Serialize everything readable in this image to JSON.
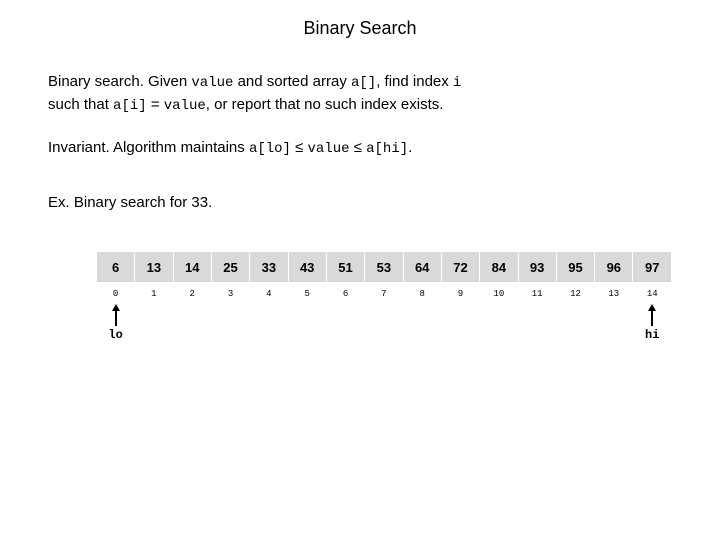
{
  "title": "Binary Search",
  "para1": {
    "lead": "Binary search.",
    "l1a": " Given ",
    "code1": "value",
    "l1b": " and sorted array ",
    "code2": "a[]",
    "l1c": ", find index ",
    "code3": "i",
    "l2a": "such that ",
    "code4": "a[i]",
    "l2b": " = ",
    "code5": "value",
    "l2c": ", or report that no such index exists."
  },
  "para2": {
    "lead": "Invariant.",
    "a": " Algorithm maintains ",
    "code1": "a[lo]",
    "le1": " ≤ ",
    "code2": "value",
    "le2": " ≤ ",
    "code3": "a[hi]",
    "dot": "."
  },
  "ex": {
    "lead": "Ex.",
    "rest": " Binary search for 33."
  },
  "array": {
    "values": [
      "6",
      "13",
      "14",
      "25",
      "33",
      "43",
      "51",
      "53",
      "64",
      "72",
      "84",
      "93",
      "95",
      "96",
      "97"
    ],
    "indices": [
      "0",
      "1",
      "2",
      "3",
      "4",
      "5",
      "6",
      "7",
      "8",
      "9",
      "10",
      "11",
      "12",
      "13",
      "14"
    ],
    "lo_label": "lo",
    "hi_label": "hi",
    "lo_index": 0,
    "hi_index": 14,
    "cell_bg": "#d9d9d9",
    "arrow_color": "#000000"
  }
}
